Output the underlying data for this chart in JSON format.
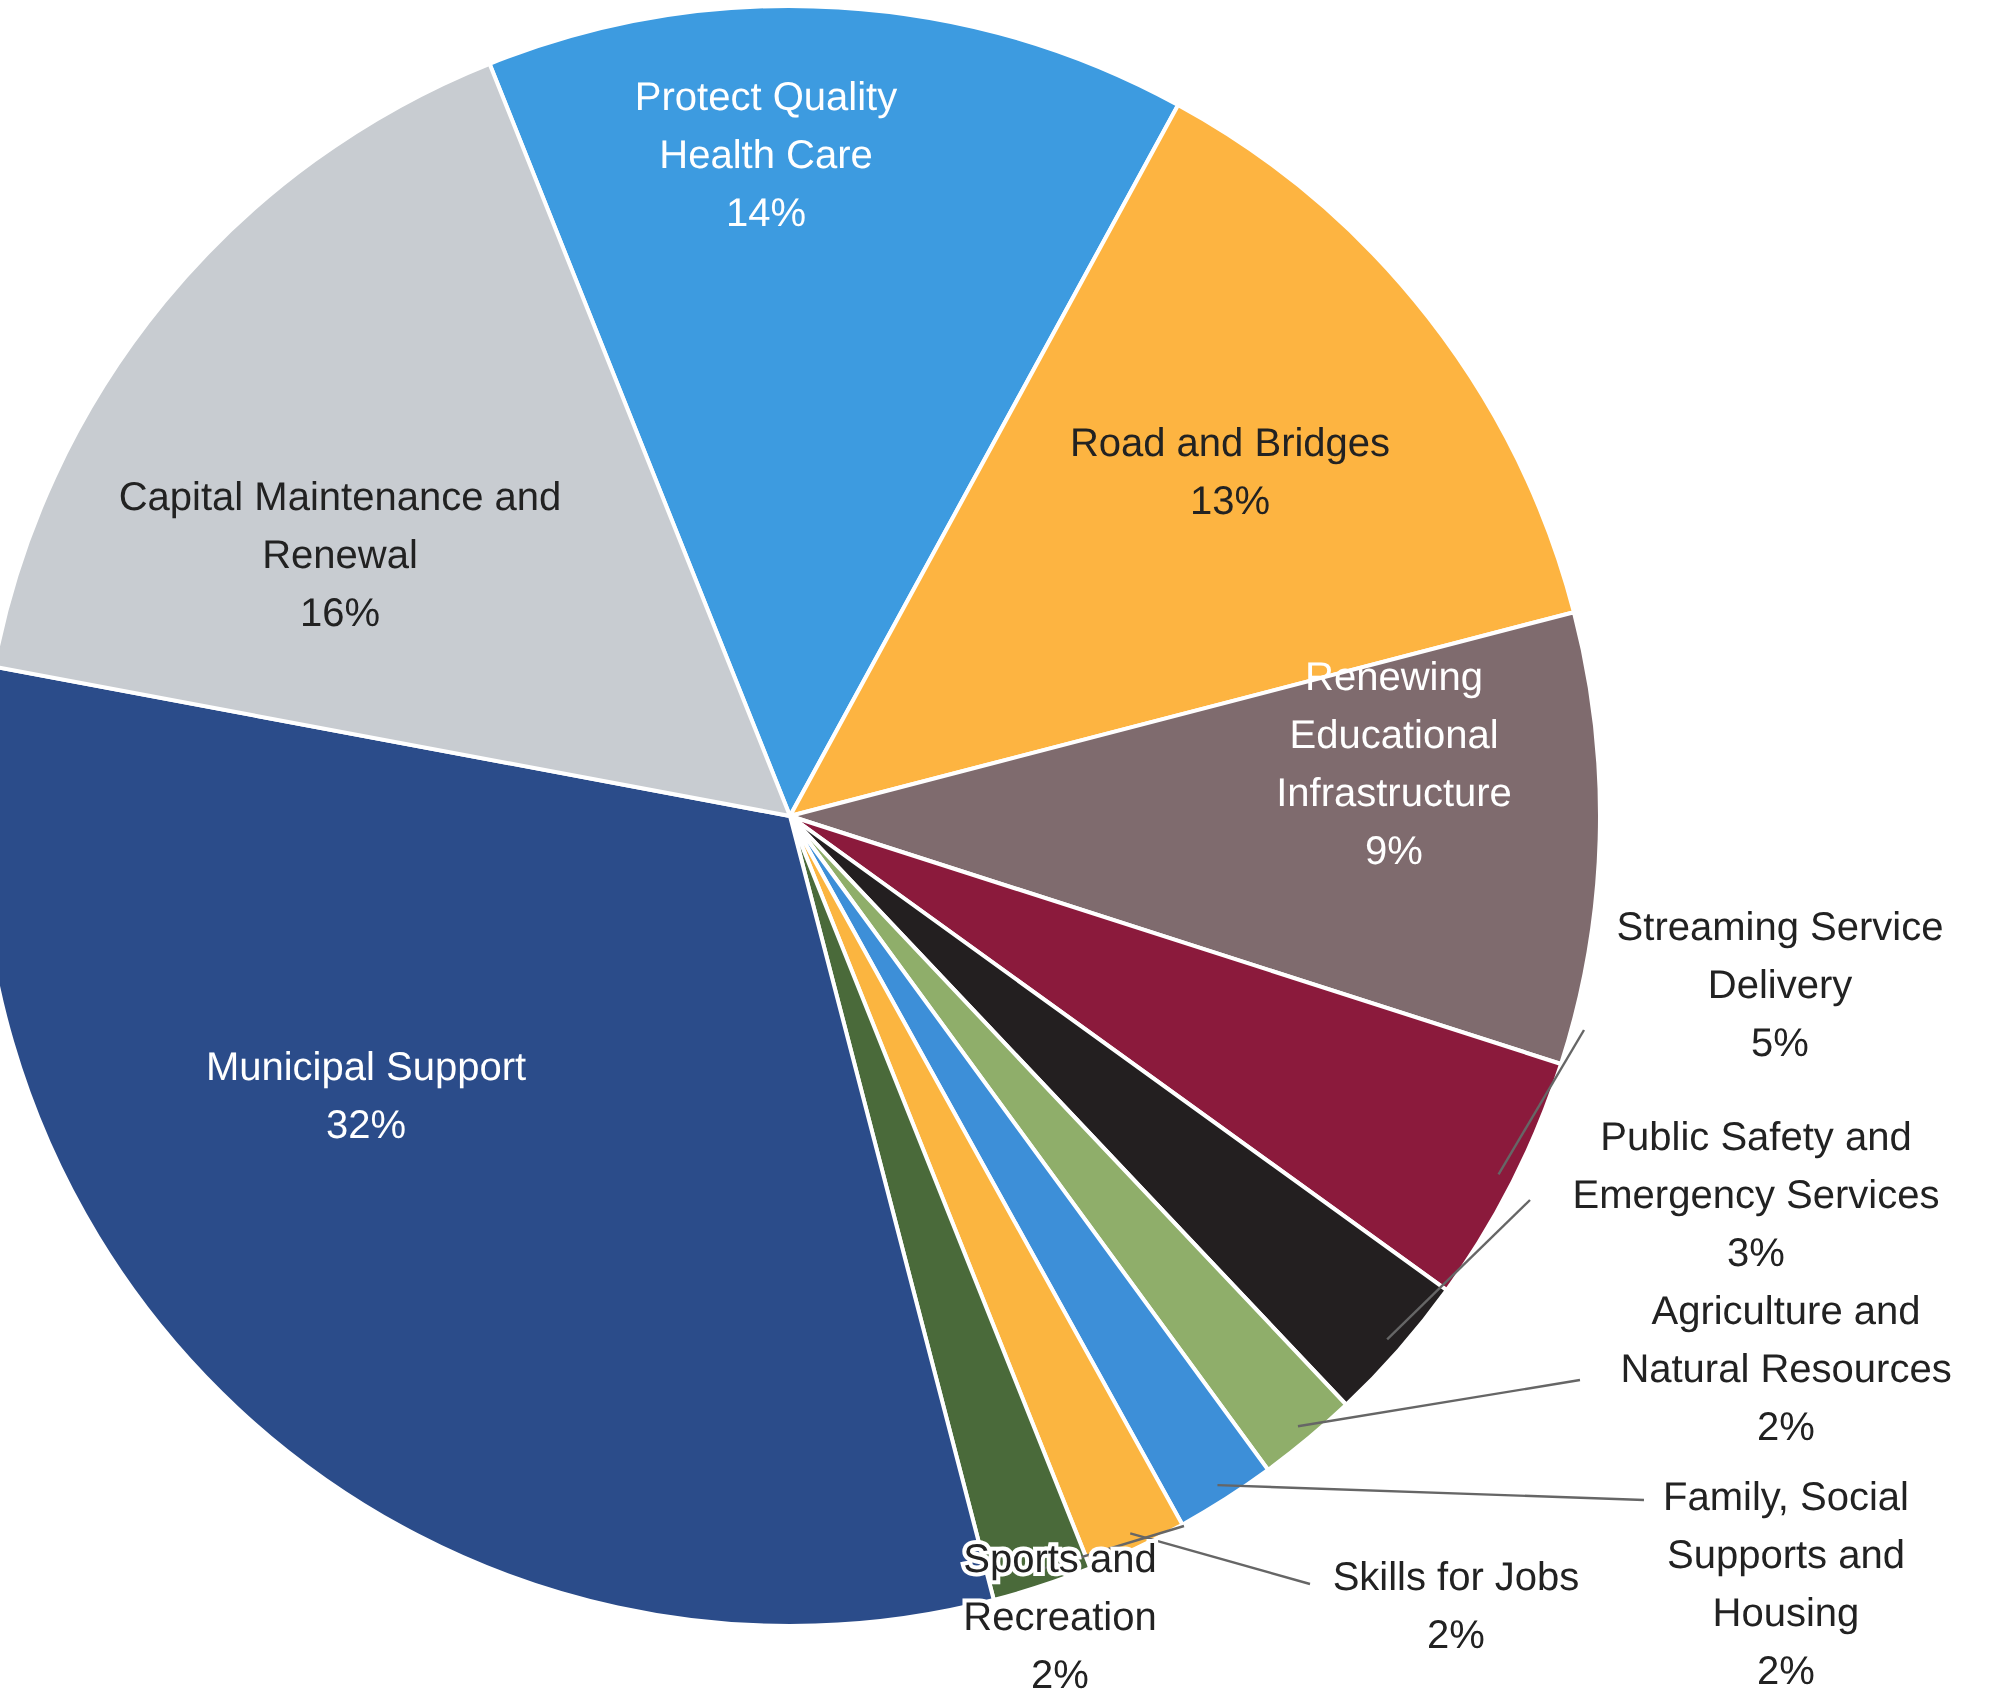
{
  "chart_data": {
    "type": "pie",
    "categories": [
      "Protect Quality Health Care",
      "Road and Bridges",
      "Renewing Educational Infrastructure",
      "Streaming Service Delivery",
      "Public Safety and Emergency Services",
      "Agriculture and Natural Resources",
      "Family, Social Supports and Housing",
      "Skills for Jobs",
      "Sports and Recreation",
      "Municipal Support",
      "Capital Maintenance and Renewal"
    ],
    "values": [
      14,
      13,
      9,
      5,
      3,
      2,
      2,
      2,
      2,
      32,
      16
    ],
    "value_labels": [
      "14%",
      "13%",
      "9%",
      "5%",
      "3%",
      "2%",
      "2%",
      "2%",
      "2%",
      "32%",
      "16%"
    ],
    "colors": [
      "#3d9be0",
      "#fdb441",
      "#7f6b6e",
      "#8b1a3c",
      "#231f20",
      "#8fae6a",
      "#3d8fd8",
      "#fbb540",
      "#4a6a3a",
      "#2b4c8a",
      "#c8ccd1"
    ]
  }
}
